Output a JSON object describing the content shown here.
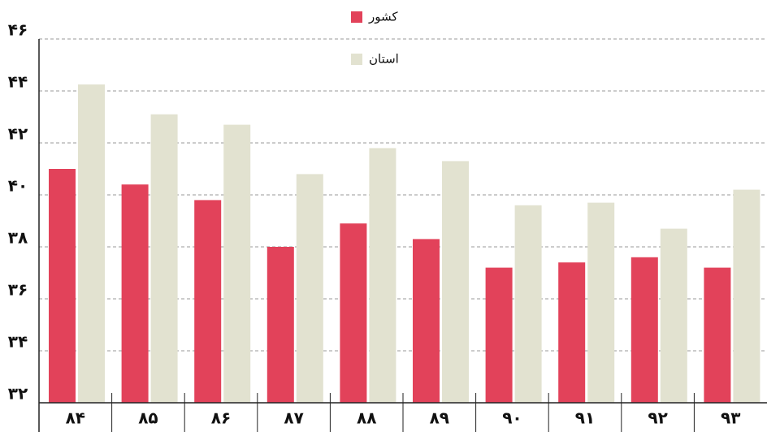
{
  "chart_data": {
    "type": "bar",
    "categories": [
      "۸۴",
      "۸۵",
      "۸۶",
      "۸۷",
      "۸۸",
      "۸۹",
      "۹۰",
      "۹۱",
      "۹۲",
      "۹۳"
    ],
    "series": [
      {
        "name": "کشور",
        "color": "#e2425a",
        "values": [
          41.0,
          40.4,
          39.8,
          38.0,
          38.9,
          38.3,
          37.2,
          37.4,
          37.6,
          37.2
        ]
      },
      {
        "name": "استان",
        "color": "#e2e2d0",
        "values": [
          44.25,
          43.1,
          42.7,
          40.8,
          41.8,
          41.3,
          39.6,
          39.7,
          38.7,
          40.2
        ]
      }
    ],
    "ylim": [
      32,
      46
    ],
    "yticks": [
      {
        "value": 32,
        "label": "۳۲"
      },
      {
        "value": 34,
        "label": "۳۴"
      },
      {
        "value": 36,
        "label": "۳۶"
      },
      {
        "value": 38,
        "label": "۳۸"
      },
      {
        "value": 40,
        "label": "۴۰"
      },
      {
        "value": 42,
        "label": "۴۲"
      },
      {
        "value": 44,
        "label": "۴۴"
      },
      {
        "value": 46,
        "label": "۴۶"
      }
    ],
    "grid": true
  }
}
